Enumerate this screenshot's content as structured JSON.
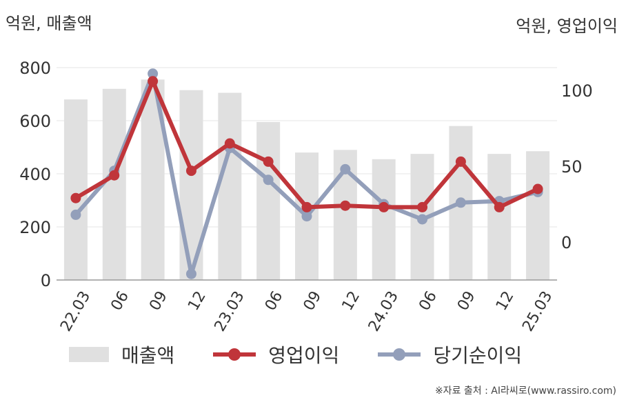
{
  "units": {
    "left": "억원, 매출액",
    "right": "억원, 영업이익"
  },
  "source": "※자료 출처 : AI라씨로(www.rassiro.com)",
  "colors": {
    "revenue": "#e0e0e0",
    "operating_profit": "#c0353a",
    "net_income": "#939fba",
    "grid": "#e6e6e6",
    "axis": "#999999"
  },
  "legend": [
    {
      "label": "매출액",
      "type": "bar",
      "color": "#e0e0e0"
    },
    {
      "label": "영업이익",
      "type": "line",
      "color": "#c0353a"
    },
    {
      "label": "당기순이익",
      "type": "line",
      "color": "#939fba"
    }
  ],
  "chart_data": {
    "type": "bar+line",
    "categories": [
      "22.03",
      "06",
      "09",
      "12",
      "23.03",
      "06",
      "09",
      "12",
      "24.03",
      "06",
      "09",
      "12",
      "25.03"
    ],
    "left_axis": {
      "ylim": [
        0,
        800
      ],
      "ticks": [
        0,
        200,
        400,
        600,
        800
      ]
    },
    "right_axis": {
      "ylim": [
        -25,
        115
      ],
      "ticks": [
        0,
        50,
        100
      ]
    },
    "grid": true,
    "legend_position": "bottom",
    "series": [
      {
        "name": "매출액",
        "type": "bar",
        "axis": "left",
        "color": "#e0e0e0",
        "values": [
          680,
          720,
          755,
          715,
          705,
          595,
          480,
          490,
          455,
          475,
          580,
          475,
          485
        ]
      },
      {
        "name": "영업이익",
        "type": "line",
        "axis": "right",
        "color": "#c0353a",
        "values": [
          29,
          44,
          106,
          47,
          65,
          53,
          23,
          24,
          23,
          23,
          53,
          23,
          35
        ]
      },
      {
        "name": "당기순이익",
        "type": "line",
        "axis": "right",
        "color": "#939fba",
        "values": [
          18,
          47,
          111,
          -21,
          62,
          41,
          17,
          48,
          25,
          15,
          26,
          27,
          33
        ]
      }
    ]
  }
}
